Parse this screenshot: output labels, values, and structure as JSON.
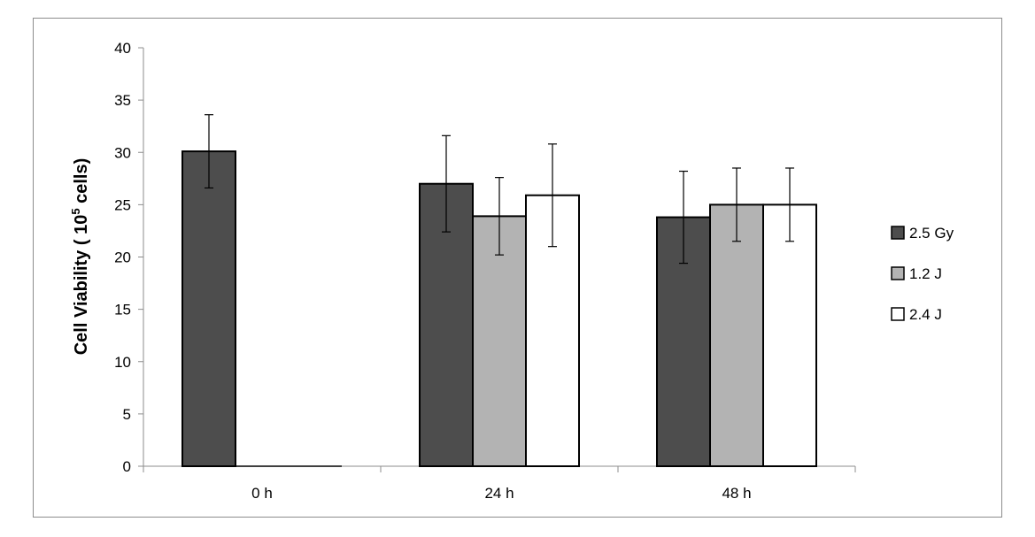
{
  "chart_data": {
    "type": "bar",
    "title": "",
    "xlabel": "",
    "ylabel": {
      "prefix": "Cell Viability ( 10",
      "superscript": "5",
      "suffix": " cells)"
    },
    "ylim": [
      0,
      40
    ],
    "y_ticks": [
      0,
      5,
      10,
      15,
      20,
      25,
      30,
      35,
      40
    ],
    "categories": [
      "0 h",
      "24 h",
      "48 h"
    ],
    "series": [
      {
        "name": "2.5 Gy",
        "color": "#4d4d4d",
        "values": [
          30.1,
          27.0,
          23.8
        ],
        "errors": [
          3.5,
          4.6,
          4.4
        ]
      },
      {
        "name": "1.2 J",
        "color": "#b3b3b3",
        "values": [
          0,
          23.9,
          25.0
        ],
        "errors": [
          0,
          3.7,
          3.5
        ]
      },
      {
        "name": "2.4 J",
        "color": "#ffffff",
        "values": [
          0,
          25.9,
          25.0
        ],
        "errors": [
          0,
          4.9,
          3.5
        ]
      }
    ],
    "grid": false,
    "legend_position": "right"
  }
}
